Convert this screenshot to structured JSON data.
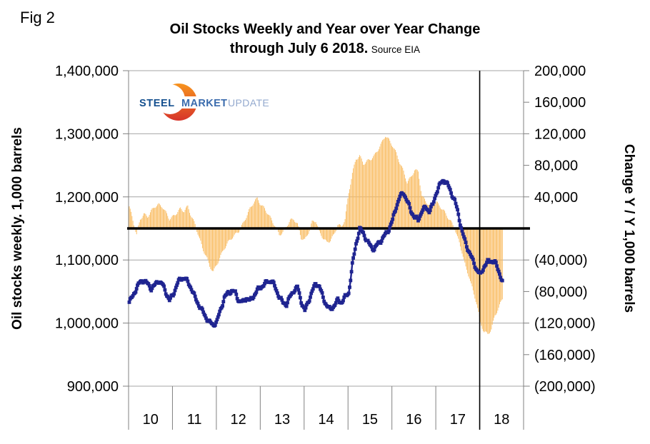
{
  "fig_label": "Fig 2",
  "title": {
    "line1": "Oil Stocks Weekly and Year over Year Change",
    "line2": "through July 6 2018.",
    "source": "Source EIA"
  },
  "logo": {
    "word1": "STEEL",
    "word2": "MARKET",
    "word3": "UPDATE"
  },
  "left_axis": {
    "title": "Oil stocks weekly. 1,000 barrels",
    "tick_labels": [
      "1,400,000",
      "1,300,000",
      "1,200,000",
      "1,100,000",
      "1,000,000",
      "900,000"
    ]
  },
  "right_axis": {
    "title": "Change Y / Y 1,000 barrels",
    "tick_labels": [
      "200,000",
      "160,000",
      "120,000",
      "80,000",
      "40,000",
      "",
      "(40,000)",
      "(80,000)",
      "(120,000)",
      "(160,000)",
      "(200,000)"
    ]
  },
  "x_axis": {
    "tick_labels": [
      "10",
      "11",
      "12",
      "13",
      "14",
      "15",
      "16",
      "17",
      "18"
    ]
  },
  "colors": {
    "bar": "#F9BB5F",
    "bar_edge": "#EFA93E",
    "line": "#1F2490",
    "zero_line": "#000000",
    "divider_line": "#000000",
    "grid": "#A6A6A6",
    "axis": "#808080",
    "logo_steel": "#15508F",
    "logo_market": "#3A6BAD",
    "logo_update": "#93A9CE",
    "logo_crescent_top": "#F7941E",
    "logo_crescent_bottom": "#D7342A"
  },
  "chart_data": {
    "type": "line+bar",
    "title": "Oil Stocks Weekly and Year over Year Change through July 6 2018. Source EIA",
    "x_unit": "month",
    "x": [
      "2010-01",
      "2010-02",
      "2010-03",
      "2010-04",
      "2010-05",
      "2010-06",
      "2010-07",
      "2010-08",
      "2010-09",
      "2010-10",
      "2010-11",
      "2010-12",
      "2011-01",
      "2011-02",
      "2011-03",
      "2011-04",
      "2011-05",
      "2011-06",
      "2011-07",
      "2011-08",
      "2011-09",
      "2011-10",
      "2011-11",
      "2011-12",
      "2012-01",
      "2012-02",
      "2012-03",
      "2012-04",
      "2012-05",
      "2012-06",
      "2012-07",
      "2012-08",
      "2012-09",
      "2012-10",
      "2012-11",
      "2012-12",
      "2013-01",
      "2013-02",
      "2013-03",
      "2013-04",
      "2013-05",
      "2013-06",
      "2013-07",
      "2013-08",
      "2013-09",
      "2013-10",
      "2013-11",
      "2013-12",
      "2014-01",
      "2014-02",
      "2014-03",
      "2014-04",
      "2014-05",
      "2014-06",
      "2014-07",
      "2014-08",
      "2014-09",
      "2014-10",
      "2014-11",
      "2014-12",
      "2015-01",
      "2015-02",
      "2015-03",
      "2015-04",
      "2015-05",
      "2015-06",
      "2015-07",
      "2015-08",
      "2015-09",
      "2015-10",
      "2015-11",
      "2015-12",
      "2016-01",
      "2016-02",
      "2016-03",
      "2016-04",
      "2016-05",
      "2016-06",
      "2016-07",
      "2016-08",
      "2016-09",
      "2016-10",
      "2016-11",
      "2016-12",
      "2017-01",
      "2017-02",
      "2017-03",
      "2017-04",
      "2017-05",
      "2017-06",
      "2017-07",
      "2017-08",
      "2017-09",
      "2017-10",
      "2017-11",
      "2017-12",
      "2018-01",
      "2018-02",
      "2018-03",
      "2018-04",
      "2018-05",
      "2018-06",
      "2018-07"
    ],
    "x_year_categories": [
      "10",
      "11",
      "12",
      "13",
      "14",
      "15",
      "16",
      "17",
      "18"
    ],
    "left_ylim": [
      900000,
      1400000
    ],
    "right_ylim": [
      -200000,
      200000
    ],
    "series": [
      {
        "name": "Oil stocks weekly (1,000 barrels, left axis)",
        "type": "line",
        "axis": "left",
        "values": [
          1033000,
          1043000,
          1056000,
          1065000,
          1068000,
          1062000,
          1055000,
          1060000,
          1067000,
          1062000,
          1049000,
          1036000,
          1045000,
          1061000,
          1070000,
          1072000,
          1065000,
          1055000,
          1040000,
          1029000,
          1019000,
          1009000,
          1001000,
          997000,
          1003000,
          1022000,
          1040000,
          1048000,
          1051000,
          1048000,
          1035000,
          1033000,
          1040000,
          1035000,
          1043000,
          1052000,
          1057000,
          1062000,
          1066000,
          1067000,
          1055000,
          1042000,
          1032000,
          1030000,
          1042000,
          1052000,
          1057000,
          1035000,
          1019000,
          1035000,
          1050000,
          1063000,
          1058000,
          1040000,
          1028000,
          1021000,
          1028000,
          1036000,
          1033000,
          1041000,
          1048000,
          1092000,
          1126000,
          1149000,
          1143000,
          1130000,
          1122000,
          1117000,
          1126000,
          1132000,
          1140000,
          1149000,
          1163000,
          1185000,
          1200000,
          1207000,
          1193000,
          1178000,
          1168000,
          1163000,
          1178000,
          1183000,
          1178000,
          1187000,
          1208000,
          1220000,
          1227000,
          1220000,
          1207000,
          1194000,
          1172000,
          1145000,
          1126000,
          1112000,
          1098000,
          1085000,
          1076000,
          1090000,
          1097000,
          1099000,
          1096000,
          1083000,
          1066000
        ]
      },
      {
        "name": "Change Y / Y (1,000 barrels, right axis)",
        "type": "bar",
        "axis": "right",
        "values": [
          28000,
          10000,
          -8000,
          12000,
          18000,
          15000,
          22000,
          28000,
          30000,
          28000,
          20000,
          12000,
          15000,
          20000,
          25000,
          22000,
          28000,
          15000,
          5000,
          -10000,
          -25000,
          -35000,
          -48000,
          -55000,
          -45000,
          -35000,
          -25000,
          -18000,
          -12000,
          -8000,
          -3000,
          5000,
          15000,
          25000,
          33000,
          38000,
          30000,
          25000,
          18000,
          10000,
          2000,
          -8000,
          -5000,
          3000,
          10000,
          12000,
          5000,
          -12000,
          -15000,
          -5000,
          8000,
          10000,
          -5000,
          -12000,
          -18000,
          -15000,
          -8000,
          5000,
          2000,
          12000,
          45000,
          70000,
          88000,
          92000,
          82000,
          85000,
          88000,
          92000,
          100000,
          108000,
          118000,
          112000,
          105000,
          95000,
          83000,
          72000,
          58000,
          65000,
          74000,
          72000,
          41000,
          35000,
          29000,
          31000,
          33000,
          28000,
          22000,
          15000,
          8000,
          0,
          -15000,
          -30000,
          -50000,
          -62000,
          -80000,
          -95000,
          -120000,
          -131000,
          -134000,
          -128000,
          -110000,
          -101000,
          -89000
        ]
      }
    ],
    "annotations": {
      "zero_line_right_axis": 0,
      "vertical_divider_at": "2018-01"
    },
    "legend": "none",
    "grid": "horizontal-major-left-axis"
  }
}
